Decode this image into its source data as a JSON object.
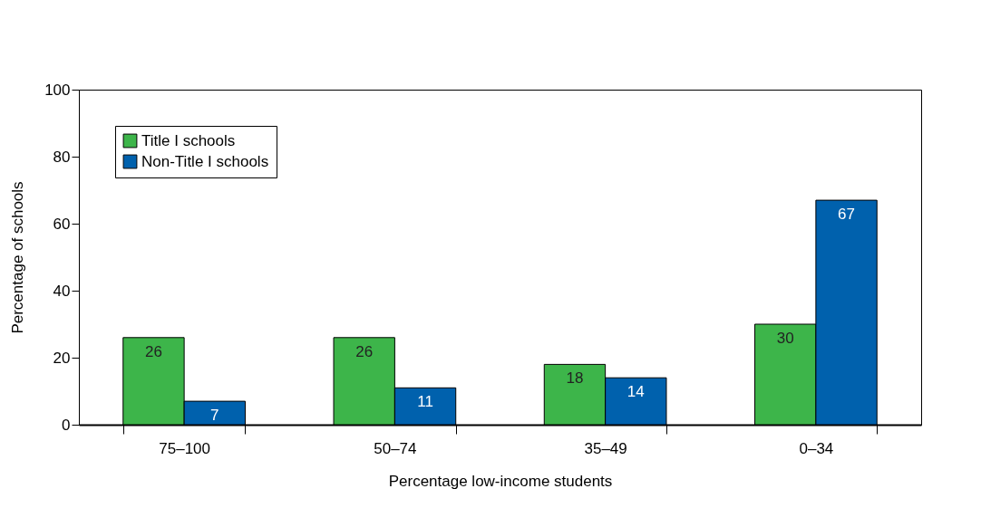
{
  "chart_data": {
    "type": "bar",
    "xlabel": "Percentage low-income students",
    "ylabel": "Percentage of schools",
    "categories": [
      "75–100",
      "50–74",
      "35–49",
      "0–34"
    ],
    "series": [
      {
        "name": "Title I schools",
        "color": "#3db54a",
        "values": [
          26,
          26,
          18,
          30
        ]
      },
      {
        "name": "Non-Title I schools",
        "color": "#0061ad",
        "values": [
          7,
          11,
          14,
          67
        ]
      }
    ],
    "ylim": [
      0,
      100
    ],
    "yticks": [
      0,
      20,
      40,
      60,
      80,
      100
    ],
    "legend": "top left",
    "data_labels": true
  }
}
